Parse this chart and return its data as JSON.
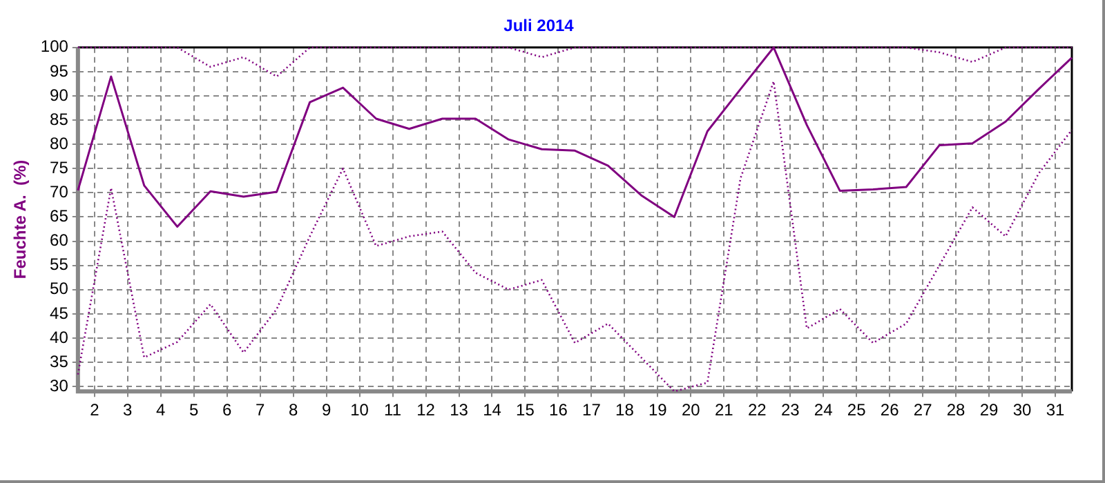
{
  "chart_data": {
    "type": "line",
    "title": "Juli 2014",
    "ylabel": "Feuchte A.  (%)",
    "x": [
      1.5,
      2.5,
      3.5,
      4.5,
      5.5,
      6.5,
      7.5,
      8.5,
      9.5,
      10.5,
      11.5,
      12.5,
      13.5,
      14.5,
      15.5,
      16.5,
      17.5,
      18.5,
      19.5,
      20.5,
      21.5,
      22.5,
      23.5,
      24.5,
      25.5,
      26.5,
      27.5,
      28.5,
      29.5,
      30.5,
      31.5
    ],
    "series": [
      {
        "color": "#800080",
        "line_style": "dotted",
        "values": [
          100,
          100,
          100,
          100,
          96,
          98,
          94,
          100,
          100,
          100,
          100,
          100,
          100,
          100,
          98,
          100,
          100,
          100,
          100,
          100,
          100,
          100,
          100,
          100,
          100,
          100,
          99,
          97,
          100,
          100,
          100
        ]
      },
      {
        "color": "#800080",
        "line_style": "solid",
        "values": [
          70.5,
          94,
          71.5,
          63,
          70.3,
          69.2,
          70.2,
          88.7,
          91.7,
          85.3,
          83.2,
          85.3,
          85.3,
          81,
          79,
          78.7,
          75.6,
          69.5,
          65,
          82.7,
          91.4,
          100,
          84,
          70.4,
          70.7,
          71.2,
          79.8,
          80.2,
          84.7,
          91.4,
          97.9
        ]
      },
      {
        "color": "#800080",
        "line_style": "dotted",
        "values": [
          32.5,
          71,
          36,
          39.2,
          47,
          37,
          46,
          61,
          75,
          59,
          61,
          62,
          53.5,
          50,
          52,
          39,
          43,
          36,
          29,
          30.8,
          73,
          93,
          42,
          46,
          39,
          43,
          55,
          67,
          61,
          74,
          83
        ]
      }
    ],
    "xlim": [
      1.5,
      31.5
    ],
    "xticks": [
      2,
      3,
      4,
      5,
      6,
      7,
      8,
      9,
      10,
      11,
      12,
      13,
      14,
      15,
      16,
      17,
      18,
      19,
      20,
      21,
      22,
      23,
      24,
      25,
      26,
      27,
      28,
      29,
      30,
      31
    ],
    "ylim": [
      29,
      100
    ],
    "yticks": [
      30,
      35,
      40,
      45,
      50,
      55,
      60,
      65,
      70,
      75,
      80,
      85,
      90,
      95,
      100
    ],
    "grid": true,
    "legend": false,
    "marker": "none"
  }
}
